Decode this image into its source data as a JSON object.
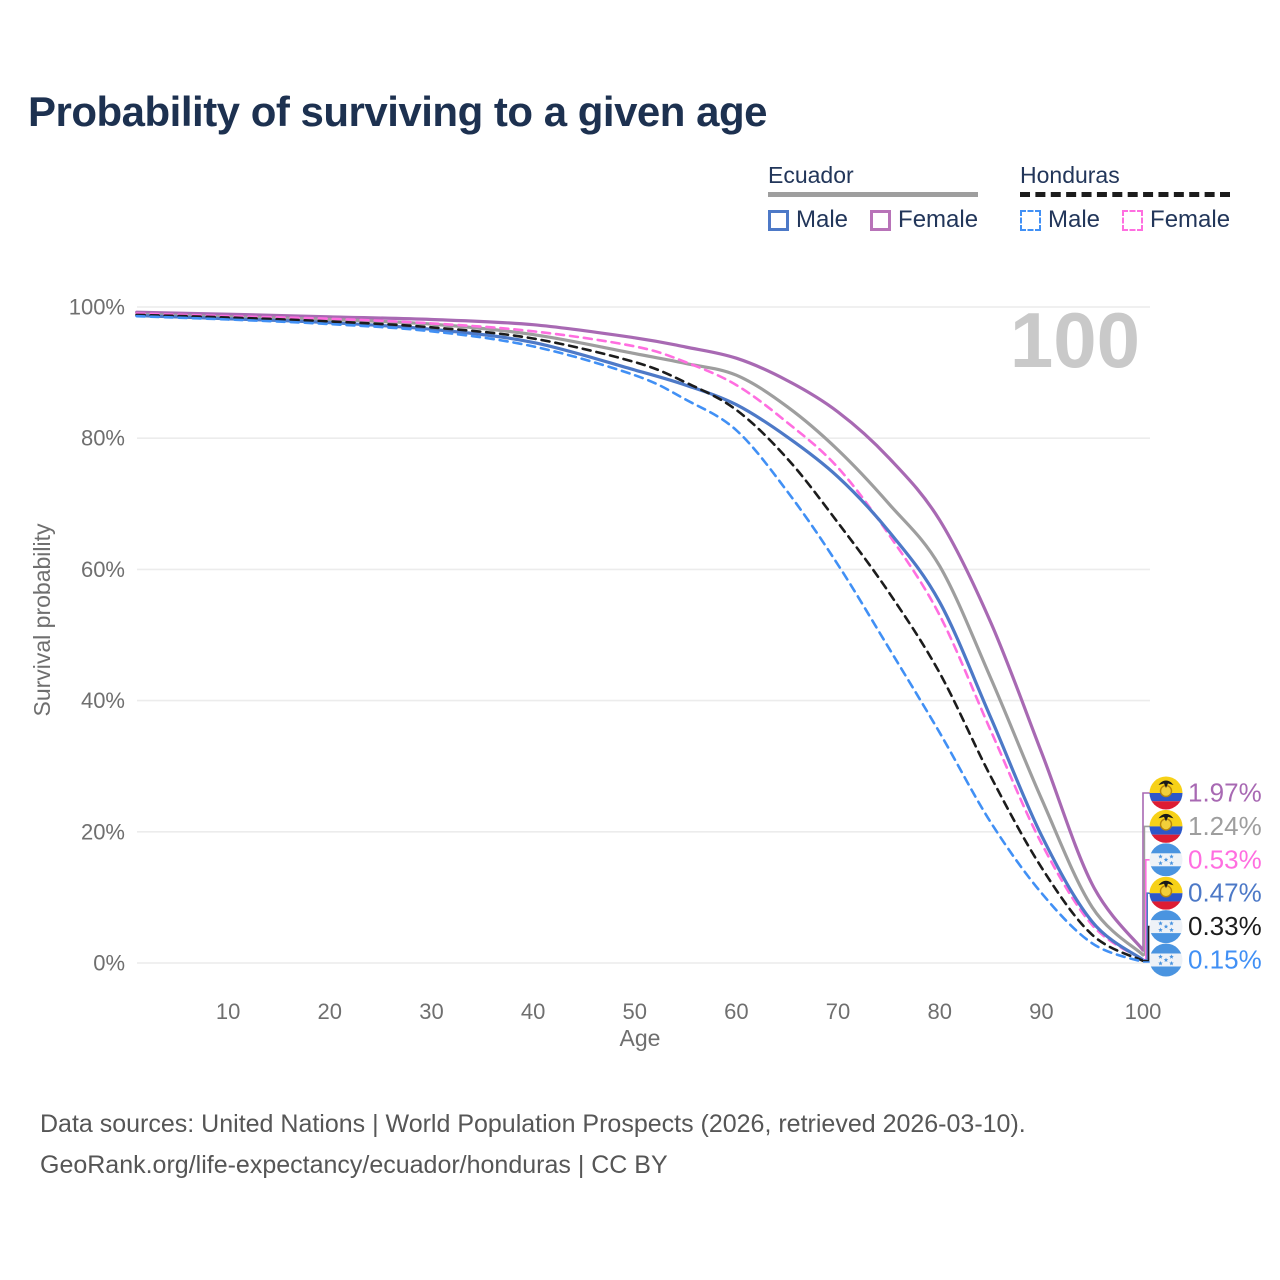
{
  "title": "Probability of surviving to a given age",
  "legend": {
    "groups": [
      {
        "name": "Ecuador",
        "line_style": "solid",
        "underline_color": "#9e9e9e",
        "items": [
          {
            "label": "Male",
            "color": "#4d79c7",
            "dashed": false
          },
          {
            "label": "Female",
            "color": "#b873b8",
            "dashed": false
          }
        ]
      },
      {
        "name": "Honduras",
        "line_style": "dashed",
        "underline_color": "#1c1c1c",
        "items": [
          {
            "label": "Male",
            "color": "#4190f5",
            "dashed": true
          },
          {
            "label": "Female",
            "color": "#ff6ee0",
            "dashed": true
          }
        ]
      }
    ]
  },
  "chart_data": {
    "type": "line",
    "title": "Probability of surviving to a given age",
    "xlabel": "Age",
    "ylabel": "Survival probability",
    "xlim": [
      1,
      100
    ],
    "ylim": [
      0,
      100
    ],
    "grid": "horizontal",
    "legend_position": "top-right",
    "watermark": "100",
    "xticks": [
      10,
      20,
      30,
      40,
      50,
      60,
      70,
      80,
      90,
      100
    ],
    "yticks": [
      {
        "value": 0,
        "label": "0%"
      },
      {
        "value": 20,
        "label": "20%"
      },
      {
        "value": 40,
        "label": "40%"
      },
      {
        "value": 60,
        "label": "60%"
      },
      {
        "value": 80,
        "label": "80%"
      },
      {
        "value": 100,
        "label": "100%"
      }
    ],
    "ages": [
      1,
      10,
      20,
      30,
      40,
      50,
      55,
      60,
      65,
      70,
      75,
      80,
      85,
      90,
      95,
      100
    ],
    "series": [
      {
        "name": "Ecuador Female",
        "country": "Ecuador",
        "sex": "Female",
        "color": "#a869b3",
        "dashed": false,
        "values": [
          99.2,
          98.9,
          98.5,
          98.1,
          97.3,
          95.3,
          93.9,
          92.2,
          88.8,
          84.0,
          77.0,
          67.5,
          52.0,
          32.2,
          12.0,
          1.97
        ],
        "end_label": "1.97%"
      },
      {
        "name": "Ecuador Total",
        "country": "Ecuador",
        "sex": "Total",
        "color": "#9e9e9e",
        "dashed": false,
        "values": [
          98.9,
          98.5,
          98.1,
          97.4,
          95.8,
          92.9,
          91.4,
          89.6,
          84.8,
          78.2,
          70.0,
          60.5,
          43.5,
          25.1,
          8.5,
          1.24
        ],
        "end_label": "1.24%"
      },
      {
        "name": "Honduras Female",
        "country": "Honduras",
        "sex": "Female",
        "color": "#ff6ee0",
        "dashed": true,
        "values": [
          99.0,
          98.6,
          98.2,
          97.5,
          96.3,
          94.0,
          91.6,
          88.1,
          82.4,
          75.5,
          65.3,
          53.0,
          35.5,
          18.3,
          5.8,
          0.53
        ],
        "end_label": "0.53%"
      },
      {
        "name": "Ecuador Male",
        "country": "Ecuador",
        "sex": "Male",
        "color": "#4d79c7",
        "dashed": false,
        "values": [
          98.7,
          98.2,
          97.6,
          96.6,
          94.6,
          90.4,
          88.1,
          85.1,
          80.2,
          74.1,
          65.8,
          55.0,
          37.5,
          19.5,
          6.3,
          0.47
        ],
        "end_label": "0.47%"
      },
      {
        "name": "Honduras Total",
        "country": "Honduras",
        "sex": "Total",
        "color": "#1c1c1c",
        "dashed": true,
        "values": [
          98.8,
          98.4,
          97.8,
          96.9,
          95.2,
          91.6,
          88.5,
          84.3,
          76.9,
          67.1,
          56.5,
          44.2,
          28.5,
          14.6,
          4.3,
          0.33
        ],
        "end_label": "0.33%"
      },
      {
        "name": "Honduras Male",
        "country": "Honduras",
        "sex": "Male",
        "color": "#4190f5",
        "dashed": true,
        "values": [
          98.6,
          98.1,
          97.4,
          96.3,
          94.0,
          89.6,
          85.9,
          81.2,
          71.9,
          60.7,
          48.0,
          35.1,
          21.5,
          10.7,
          3.0,
          0.15
        ],
        "end_label": "0.15%"
      }
    ]
  },
  "colors": {
    "title_text": "#1d3150",
    "axis_text": "#6f6f6f",
    "grid": "#ececec",
    "watermark": "#c9c9c9",
    "footer_text": "#565656",
    "flag_ecuador_yellow": "#f7d117",
    "flag_ecuador_blue": "#2d57c8",
    "flag_ecuador_red": "#dd1c33",
    "flag_honduras_blue": "#4a94e0",
    "flag_honduras_white": "#eef2f7"
  },
  "footer": {
    "line1": "Data sources: United Nations | World Population Prospects (2026, retrieved 2026-03-10).",
    "line2": "GeoRank.org/life-expectancy/ecuador/honduras | CC BY"
  }
}
